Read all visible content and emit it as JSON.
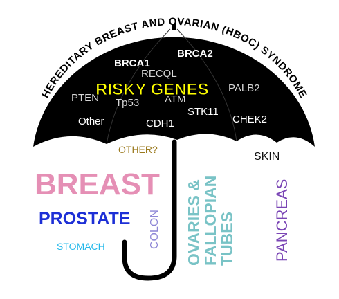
{
  "diagram": {
    "arc_title": "HEREDITARY BREAST AND OVARIAN (HBOC) SYNDROME",
    "headline": "RISKY GENES",
    "genes": {
      "brca1": "BRCA1",
      "brca2": "BRCA2",
      "recql": "RECQL",
      "pten": "PTEN",
      "tp53": "Tp53",
      "atm": "ATM",
      "palb2": "PALB2",
      "stk11": "STK11",
      "other": "Other",
      "cdh1": "CDH1",
      "chek2": "CHEK2"
    },
    "cancers": {
      "other_q": "OTHER?",
      "skin": "SKIN",
      "breast": "BREAST",
      "prostate": "PROSTATE",
      "stomach": "STOMACH",
      "colon": "COLON",
      "ovaries_line1": "OVARIES &",
      "ovaries_line2": "FALLOPIAN",
      "ovaries_line3": "TUBES",
      "pancreas": "PANCREAS"
    },
    "colors": {
      "canopy": "#000000",
      "arc_title": "#000000",
      "gene_text": "#ffffff",
      "headline": "#ffff00",
      "other_q": "#9b7a1e",
      "skin": "#111111",
      "breast": "#e58fb5",
      "prostate": "#1d2fd6",
      "stomach": "#22b8ea",
      "colon": "#8d86d6",
      "ovaries": "#79c3c6",
      "pancreas": "#7a45b5"
    }
  }
}
